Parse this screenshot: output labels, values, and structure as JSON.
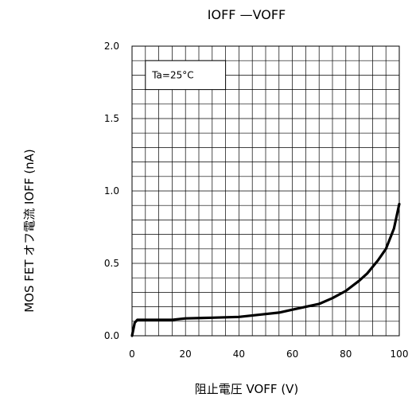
{
  "chart_data": {
    "type": "line",
    "title": "IOFF —VOFF",
    "xlabel": "阻止電圧  VOFF (V)",
    "ylabel": "MOS FET オフ電流  IOFF (nA)",
    "annotation": "Ta=25°C",
    "xlim": [
      0,
      100
    ],
    "ylim": [
      0,
      2.0
    ],
    "x_ticks": [
      0,
      20,
      40,
      60,
      80,
      100
    ],
    "y_ticks": [
      0.0,
      0.5,
      1.0,
      1.5,
      2.0
    ],
    "x_tick_labels": [
      "0",
      "20",
      "40",
      "60",
      "80",
      "100"
    ],
    "y_tick_labels": [
      "0.0",
      "0.5",
      "1.0",
      "1.5",
      "2.0"
    ],
    "x_minor_step": 5,
    "y_minor_step": 0.1,
    "grid": true,
    "series": [
      {
        "x": [
          0,
          1,
          2,
          5,
          10,
          15,
          20,
          30,
          40,
          50,
          55,
          60,
          65,
          70,
          75,
          80,
          85,
          88,
          92,
          95,
          98,
          100
        ],
        "y": [
          0.0,
          0.09,
          0.11,
          0.11,
          0.11,
          0.11,
          0.12,
          0.125,
          0.13,
          0.15,
          0.16,
          0.18,
          0.2,
          0.22,
          0.26,
          0.31,
          0.38,
          0.43,
          0.52,
          0.6,
          0.74,
          0.91
        ]
      }
    ]
  }
}
